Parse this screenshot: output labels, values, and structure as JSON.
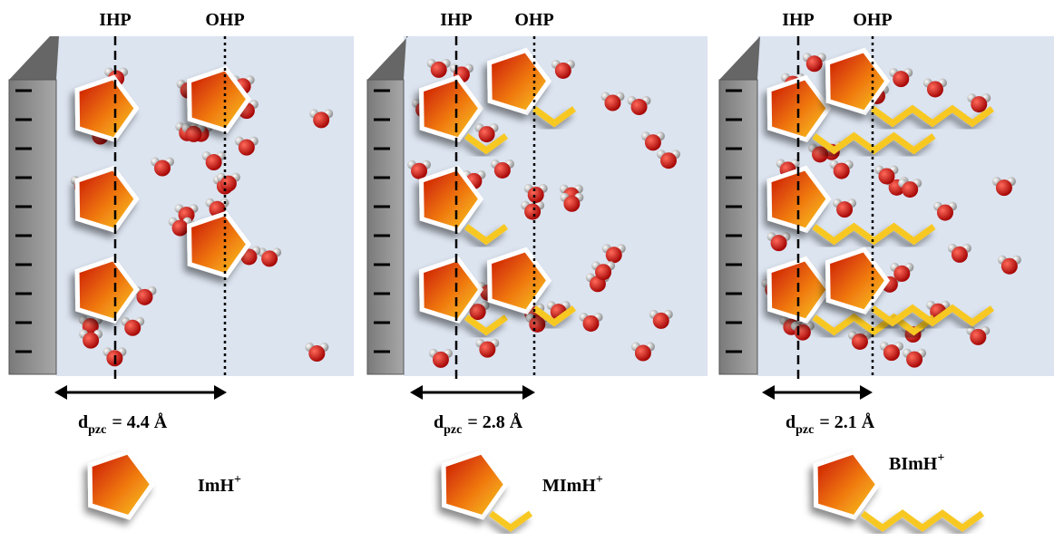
{
  "panels": [
    {
      "ihp": "IHP",
      "ohp": "OHP",
      "distance": {
        "symbol": "d",
        "subscript": "pzc",
        "value": "= 4.4 Å"
      },
      "ion": {
        "name": "ImH",
        "charge": "+"
      }
    },
    {
      "ihp": "IHP",
      "ohp": "OHP",
      "distance": {
        "symbol": "d",
        "subscript": "pzc",
        "value": "= 2.8 Å"
      },
      "ion": {
        "name": "MImH",
        "charge": "+"
      }
    },
    {
      "ihp": "IHP",
      "ohp": "OHP",
      "distance": {
        "symbol": "d",
        "subscript": "pzc",
        "value": "= 2.1 Å"
      },
      "ion": {
        "name": "BImH",
        "charge": "+"
      }
    }
  ]
}
